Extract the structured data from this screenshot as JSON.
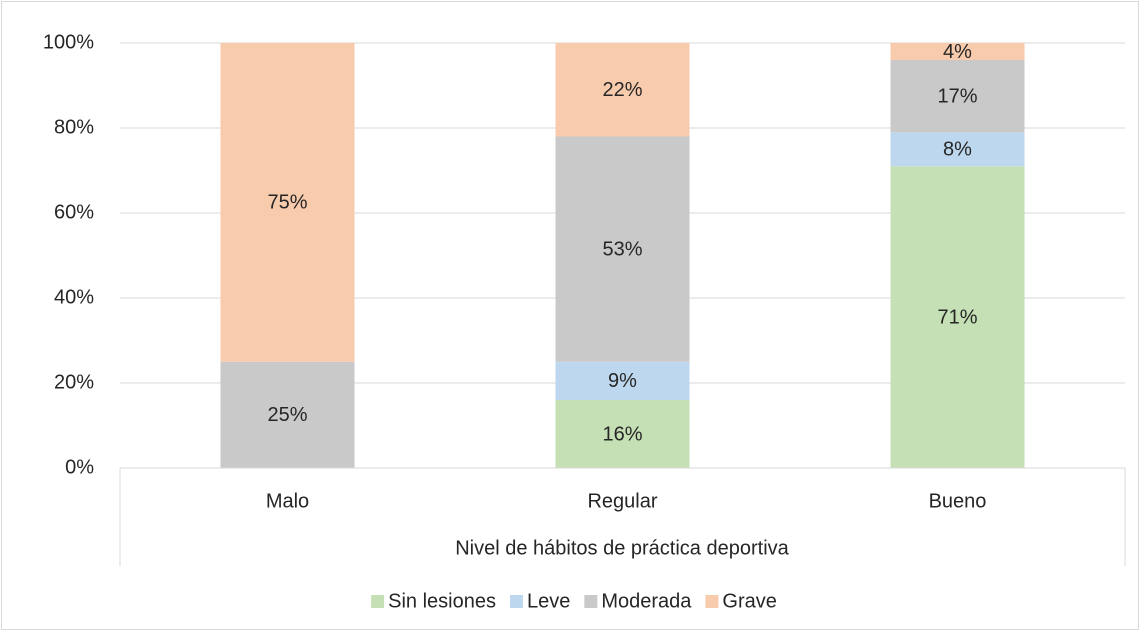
{
  "chart_data": {
    "type": "stacked_bar",
    "categories": [
      "Malo",
      "Regular",
      "Bueno"
    ],
    "x_label": "Nivel de hábitos de práctica deportiva",
    "series": [
      {
        "name": "Sin lesiones",
        "color": "#c5e0b4",
        "values": [
          0,
          16,
          71
        ],
        "value_labels": [
          null,
          "16%",
          "71%"
        ]
      },
      {
        "name": "Leve",
        "color": "#bdd7ee",
        "values": [
          0,
          9,
          8
        ],
        "value_labels": [
          null,
          "9%",
          "8%"
        ]
      },
      {
        "name": "Moderada",
        "color": "#c9c9c9",
        "values": [
          25,
          53,
          17
        ],
        "value_labels": [
          "25%",
          "53%",
          "17%"
        ]
      },
      {
        "name": "Grave",
        "color": "#f8cbad",
        "values": [
          75,
          22,
          4
        ],
        "value_labels": [
          "75%",
          "22%",
          "4%"
        ]
      }
    ],
    "ylim": [
      0,
      100
    ],
    "yticks": [
      {
        "value": 0,
        "label": "0%"
      },
      {
        "value": 20,
        "label": "20%"
      },
      {
        "value": 40,
        "label": "40%"
      },
      {
        "value": 60,
        "label": "60%"
      },
      {
        "value": 80,
        "label": "80%"
      },
      {
        "value": 100,
        "label": "100%"
      }
    ],
    "grid": true,
    "legend": "bottom"
  }
}
